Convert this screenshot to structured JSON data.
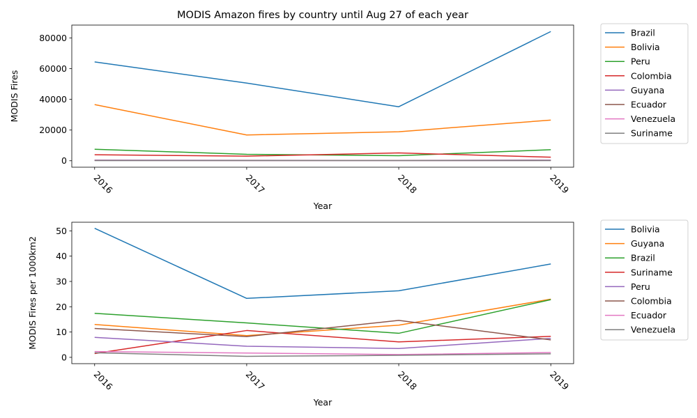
{
  "chart_data": [
    {
      "type": "line",
      "title": "MODIS Amazon fires by country until Aug 27 of each year",
      "xlabel": "Year",
      "ylabel": "MODIS Fires",
      "x": [
        "2016",
        "2017",
        "2018",
        "2019"
      ],
      "ylim": [
        -4200,
        88400
      ],
      "yticks": [
        0,
        20000,
        40000,
        60000,
        80000
      ],
      "ytick_labels": [
        "0",
        "20000",
        "40000",
        "60000",
        "80000"
      ],
      "legend_position": "outside-right",
      "grid": false,
      "series": [
        {
          "name": "Brazil",
          "color": "#1f77b4",
          "values": [
            64400,
            50600,
            35200,
            84200
          ]
        },
        {
          "name": "Bolivia",
          "color": "#ff7f0e",
          "values": [
            36600,
            16800,
            18900,
            26500
          ]
        },
        {
          "name": "Peru",
          "color": "#2ca02c",
          "values": [
            7500,
            4200,
            3300,
            7200
          ]
        },
        {
          "name": "Colombia",
          "color": "#d62728",
          "values": [
            3900,
            3000,
            5100,
            2300
          ]
        },
        {
          "name": "Guyana",
          "color": "#9467bd",
          "values": [
            400,
            300,
            200,
            400
          ]
        },
        {
          "name": "Ecuador",
          "color": "#8c564b",
          "values": [
            300,
            200,
            200,
            300
          ]
        },
        {
          "name": "Venezuela",
          "color": "#e377c2",
          "values": [
            200,
            100,
            100,
            200
          ]
        },
        {
          "name": "Suriname",
          "color": "#7f7f7f",
          "values": [
            100,
            100,
            100,
            100
          ]
        }
      ]
    },
    {
      "type": "line",
      "title": "",
      "xlabel": "Year",
      "ylabel": "MODIS Fires per 1000km2",
      "x": [
        "2016",
        "2017",
        "2018",
        "2019"
      ],
      "ylim": [
        -2.5,
        53.4
      ],
      "yticks": [
        0,
        10,
        20,
        30,
        40,
        50
      ],
      "ytick_labels": [
        "0",
        "10",
        "20",
        "30",
        "40",
        "50"
      ],
      "legend_position": "outside-right",
      "grid": false,
      "series": [
        {
          "name": "Bolivia",
          "color": "#1f77b4",
          "values": [
            51.0,
            23.3,
            26.3,
            36.9
          ]
        },
        {
          "name": "Guyana",
          "color": "#ff7f0e",
          "values": [
            13.0,
            8.6,
            12.7,
            23.0
          ]
        },
        {
          "name": "Brazil",
          "color": "#2ca02c",
          "values": [
            17.4,
            13.6,
            9.5,
            22.8
          ]
        },
        {
          "name": "Suriname",
          "color": "#d62728",
          "values": [
            1.5,
            10.6,
            6.1,
            8.3
          ]
        },
        {
          "name": "Peru",
          "color": "#9467bd",
          "values": [
            7.9,
            4.4,
            3.5,
            7.5
          ]
        },
        {
          "name": "Colombia",
          "color": "#8c564b",
          "values": [
            11.4,
            8.2,
            14.6,
            6.9
          ]
        },
        {
          "name": "Ecuador",
          "color": "#e377c2",
          "values": [
            2.3,
            1.7,
            1.1,
            1.9
          ]
        },
        {
          "name": "Venezuela",
          "color": "#7f7f7f",
          "values": [
            1.8,
            0.4,
            0.8,
            1.4
          ]
        }
      ]
    }
  ]
}
